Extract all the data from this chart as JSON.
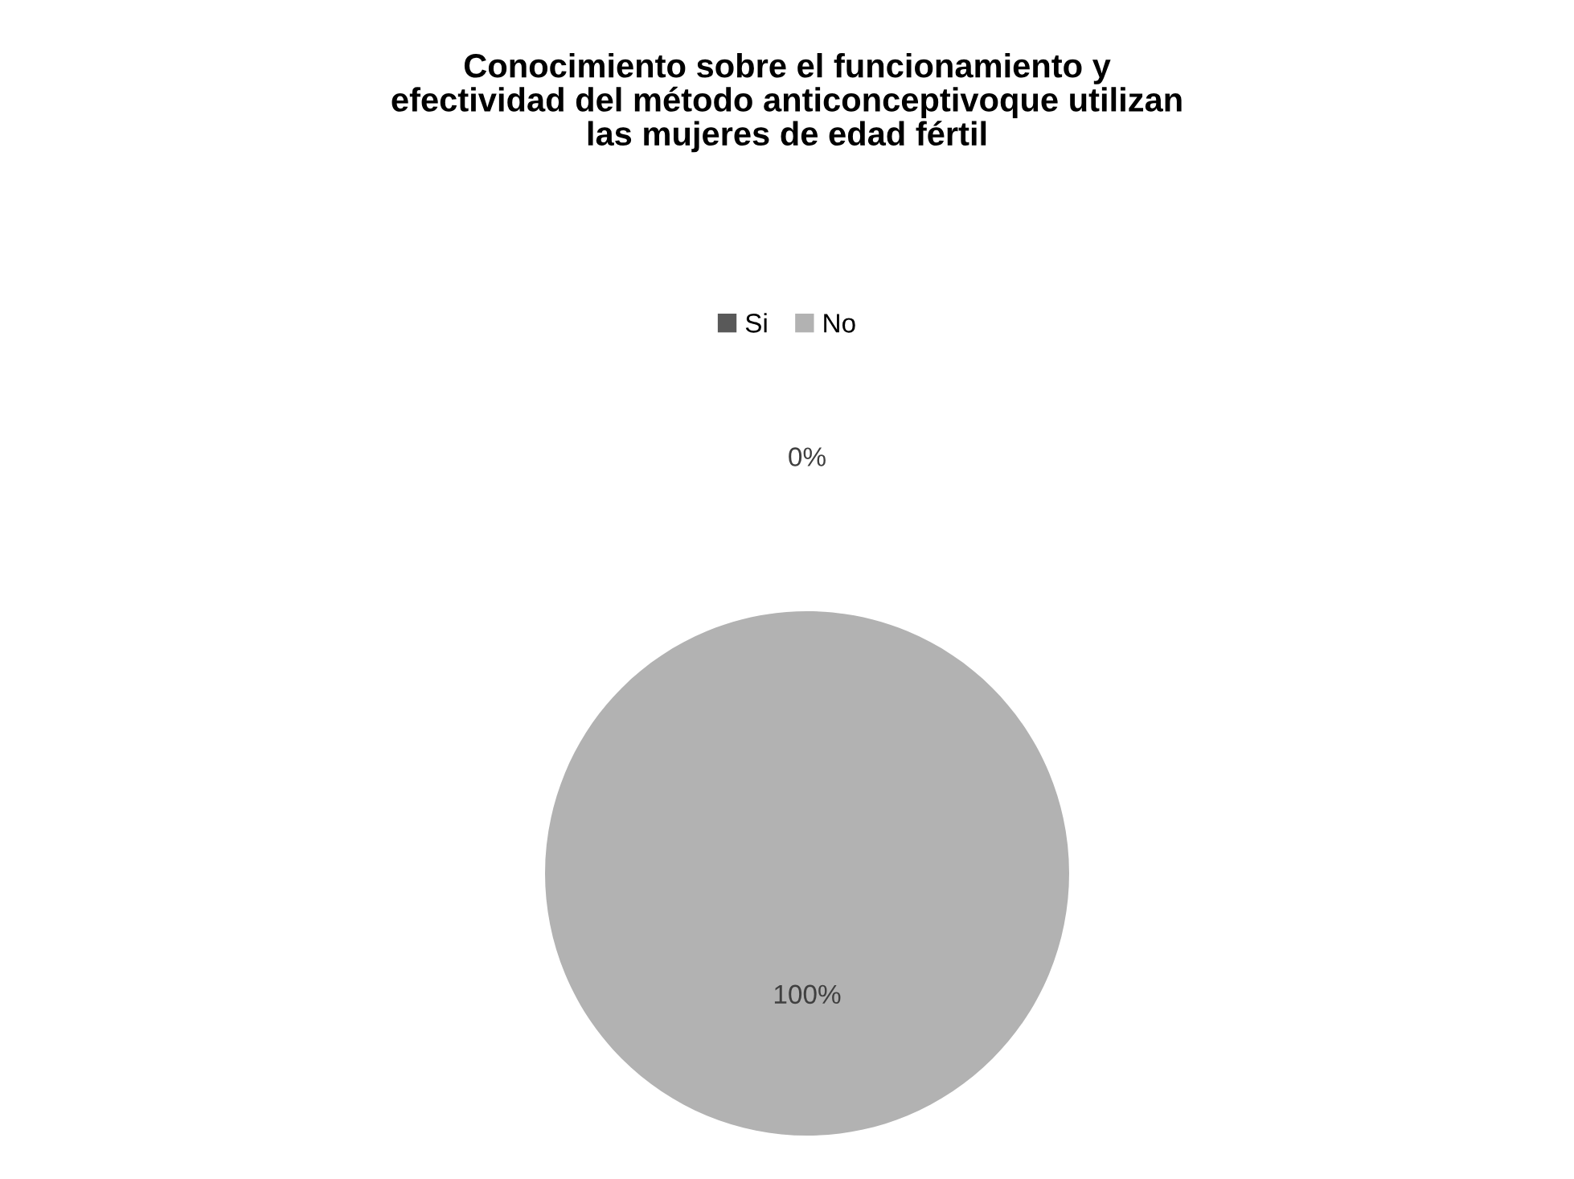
{
  "chart_data": {
    "type": "pie",
    "title": "Conocimiento sobre el funcionamiento y\nefectividad del método anticonceptivoque utilizan\nlas mujeres de edad fértil",
    "categories": [
      "Si",
      "No"
    ],
    "values": [
      0,
      100
    ],
    "colors": [
      "#595959",
      "#b2b2b2"
    ],
    "value_labels": [
      "0%",
      "100%"
    ],
    "legend": "top"
  }
}
